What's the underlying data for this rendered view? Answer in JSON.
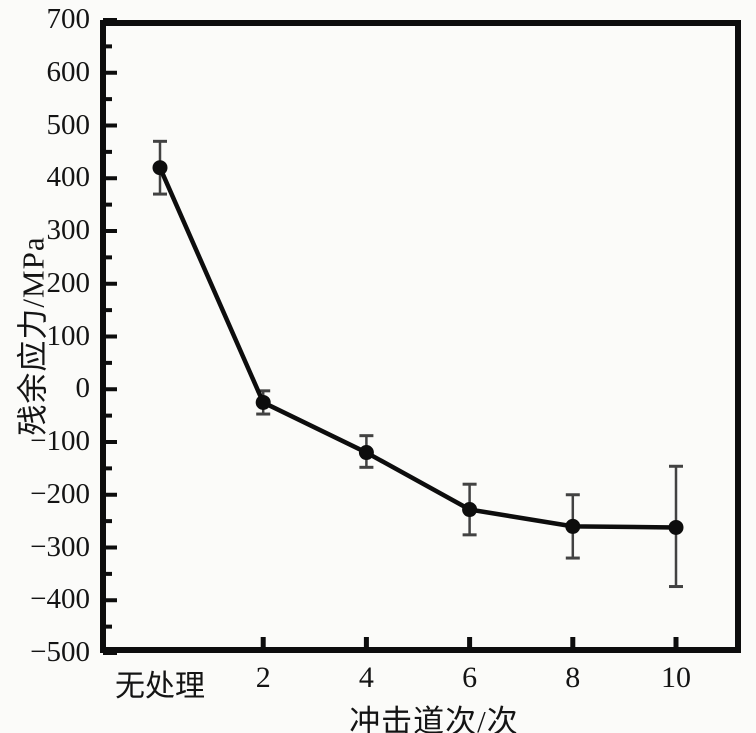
{
  "chart_data": {
    "type": "line",
    "title": "",
    "xlabel": "冲击道次/次",
    "ylabel": "残余应力/MPa",
    "categories": [
      "无处理",
      "2",
      "4",
      "6",
      "8",
      "10"
    ],
    "values": [
      420,
      -25,
      -120,
      -228,
      -260,
      -262
    ],
    "error_up": [
      50,
      22,
      32,
      48,
      60,
      116
    ],
    "error_down": [
      50,
      22,
      28,
      48,
      60,
      112
    ],
    "ylim": [
      -500,
      700
    ],
    "y_major_step": 100,
    "y_minor_step": 50,
    "grid": "off",
    "legend": "none",
    "marker": "filled-circle",
    "line_color": "#0d0d0d",
    "axis_color": "#0d0d0d",
    "error_bar_color": "#424242",
    "background": "#fbfbf9"
  },
  "y_axis": {
    "tick_labels": [
      "700",
      "600",
      "500",
      "400",
      "300",
      "200",
      "100",
      "0",
      "−100",
      "−200",
      "−300",
      "−400",
      "−500"
    ]
  },
  "x_axis": {
    "tick_labels": [
      "无处理",
      "2",
      "4",
      "6",
      "8",
      "10"
    ],
    "has_tick_mark": [
      false,
      true,
      true,
      true,
      true,
      true
    ]
  }
}
